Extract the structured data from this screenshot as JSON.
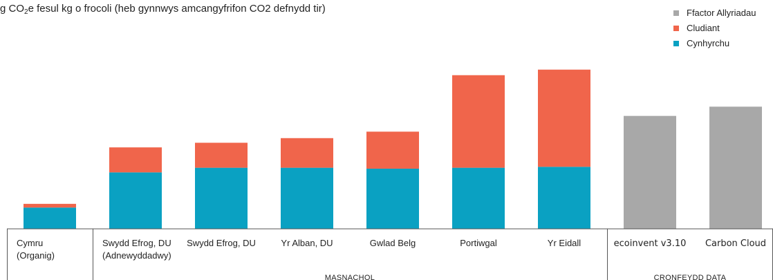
{
  "chart_data": {
    "type": "bar",
    "stacked": true,
    "title_prefix": "g CO",
    "title_subscript": "2",
    "title_suffix": "e fesul kg o frocoli (heb gynnwys amcangyfrifon CO2 defnydd tir)",
    "categories": [
      [
        "Cymru",
        "(Organig)"
      ],
      [
        "Swydd Efrog, DU",
        "(Adnewyddadwy)"
      ],
      [
        "Swydd Efrog, DU"
      ],
      [
        "Yr Alban, DU"
      ],
      [
        "Gwlad Belg"
      ],
      [
        "Portiwgal"
      ],
      [
        "Yr Eidall"
      ],
      [
        "ecoinvent v3.10"
      ],
      [
        "Carbon Cloud"
      ]
    ],
    "groups": [
      {
        "label": "MASNACHOL",
        "from": 1,
        "to": 6
      },
      {
        "label": "CRONFEYDD DATA",
        "from": 7,
        "to": 8
      }
    ],
    "series": [
      {
        "name": "Cynhyrchu",
        "color": "#0aa1c2",
        "values": [
          23,
          61,
          66,
          66,
          65,
          66,
          67,
          0,
          0
        ]
      },
      {
        "name": "Cludiant",
        "color": "#f0654b",
        "values": [
          4,
          27,
          27,
          32,
          40,
          100,
          105,
          0,
          0
        ]
      },
      {
        "name": "Ffactor Allyriadau",
        "color": "#a8a8a8",
        "values": [
          0,
          0,
          0,
          0,
          0,
          0,
          0,
          122,
          132
        ]
      }
    ],
    "legend": {
      "position": "top-right",
      "order": [
        "Ffactor Allyriadau",
        "Cludiant",
        "Cynhyrchu"
      ]
    },
    "ylim": [
      0,
      180
    ],
    "grid": false,
    "xlabel": "",
    "ylabel": ""
  }
}
